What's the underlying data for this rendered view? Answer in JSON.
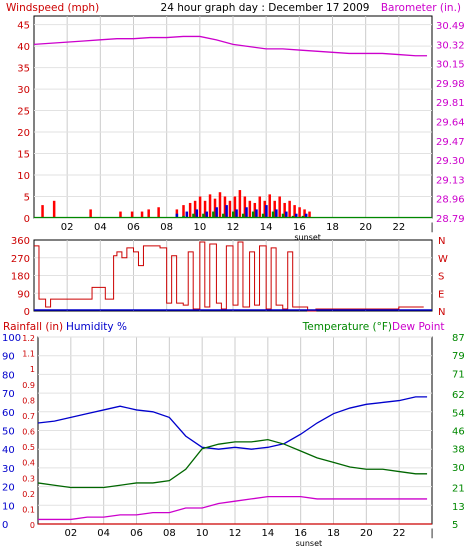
{
  "chart_data": [
    {
      "type": "bar",
      "panel": "wind-barometer",
      "title": "24 hour graph day : December 17 2009",
      "left_axis_label": "Windspeed (mph)",
      "right_axis_label": "Barometer (in.)",
      "left_ticks": [
        "0",
        "5",
        "10",
        "15",
        "20",
        "25",
        "30",
        "35",
        "40",
        "45"
      ],
      "right_ticks": [
        "28.79",
        "28.96",
        "29.13",
        "29.30",
        "29.47",
        "29.64",
        "29.81",
        "29.98",
        "30.15",
        "30.32",
        "30.49"
      ],
      "ylim_left": [
        0,
        47
      ],
      "ylim_right": [
        28.79,
        30.57
      ],
      "xlim": [
        0,
        24
      ],
      "x_ticks": [
        "02",
        "04",
        "06",
        "08",
        "10",
        "12",
        "14",
        "16",
        "18",
        "20",
        "22"
      ],
      "sunset_label": "sunset",
      "sunset_hour": 16.5,
      "grid": true,
      "series": [
        {
          "role": "barometer",
          "color": "#cc00cc",
          "x": [
            0,
            1,
            2,
            3,
            4,
            5,
            6,
            7,
            8,
            9,
            10,
            11,
            12,
            13,
            14,
            15,
            16,
            17,
            18,
            19,
            20,
            21,
            22,
            23,
            23.7
          ],
          "y": [
            30.32,
            30.33,
            30.34,
            30.35,
            30.36,
            30.37,
            30.37,
            30.38,
            30.38,
            30.39,
            30.39,
            30.36,
            30.32,
            30.3,
            30.28,
            30.28,
            30.27,
            30.26,
            30.25,
            30.24,
            30.24,
            30.24,
            30.23,
            30.22,
            30.22
          ]
        },
        {
          "role": "gust",
          "color": "#ff0000",
          "x": [
            0.5,
            1.2,
            3.4,
            5.2,
            5.9,
            6.5,
            6.9,
            7.5,
            8.6,
            9.0,
            9.4,
            9.7,
            10.0,
            10.3,
            10.6,
            10.9,
            11.2,
            11.5,
            11.8,
            12.1,
            12.4,
            12.7,
            13.0,
            13.3,
            13.6,
            13.9,
            14.2,
            14.5,
            14.8,
            15.1,
            15.4,
            15.7,
            16.0,
            16.3,
            16.6
          ],
          "y": [
            3,
            4,
            2,
            1.5,
            1.5,
            1.5,
            2,
            2.5,
            2,
            3,
            3.5,
            4,
            5,
            4,
            5.5,
            4.5,
            6,
            5,
            4,
            5,
            6.5,
            5,
            4,
            3.5,
            5,
            4,
            5.5,
            4,
            5,
            3.5,
            4,
            3,
            2.5,
            2,
            1.5
          ]
        },
        {
          "role": "average",
          "color": "#0000cc",
          "x": [
            8.6,
            9.2,
            9.8,
            10.4,
            11.0,
            11.6,
            12.2,
            12.8,
            13.4,
            14.0,
            14.6,
            15.2,
            15.8,
            16.4
          ],
          "y": [
            1,
            1.5,
            2,
            1.5,
            2.5,
            3,
            2,
            2.5,
            2,
            3,
            2,
            1.5,
            1,
            1
          ]
        },
        {
          "role": "wind",
          "color": "#008800",
          "x": [
            9.0,
            9.6,
            10.2,
            10.8,
            11.4,
            12.0,
            12.6,
            13.2,
            13.8,
            14.4,
            15.0,
            15.6,
            16.2
          ],
          "y": [
            0.5,
            1,
            1,
            1.5,
            1,
            1.5,
            1,
            1.5,
            1,
            1.5,
            1,
            0.5,
            0.5
          ]
        }
      ]
    },
    {
      "type": "scatter",
      "panel": "wind-direction",
      "left_ticks": [
        "0",
        "90",
        "180",
        "270",
        "360"
      ],
      "right_ticks": [
        "N",
        "W",
        "S",
        "E",
        "N"
      ],
      "ylim": [
        0,
        360
      ],
      "xlim": [
        0,
        24
      ],
      "grid": true,
      "series": [
        {
          "role": "direction",
          "color": "#cc0000",
          "x": [
            0,
            0.3,
            0.7,
            1.0,
            1.5,
            2.5,
            3.0,
            3.5,
            4.0,
            4.3,
            4.5,
            4.8,
            5.0,
            5.3,
            5.6,
            6.0,
            6.3,
            6.6,
            7.0,
            7.3,
            7.6,
            8.0,
            8.3,
            8.6,
            9.0,
            9.3,
            9.6,
            10.0,
            10.3,
            10.6,
            11.0,
            11.3,
            11.6,
            12.0,
            12.3,
            12.6,
            13.0,
            13.3,
            13.6,
            14.0,
            14.3,
            14.6,
            15.0,
            15.3,
            15.6,
            16.0,
            16.5,
            17.0,
            17.3,
            20.0,
            22.0,
            23.5
          ],
          "y": [
            330,
            60,
            20,
            60,
            60,
            60,
            60,
            120,
            120,
            60,
            60,
            280,
            300,
            270,
            320,
            300,
            230,
            330,
            330,
            330,
            320,
            40,
            280,
            40,
            30,
            300,
            10,
            350,
            20,
            340,
            40,
            10,
            330,
            30,
            350,
            20,
            300,
            30,
            330,
            10,
            320,
            30,
            10,
            300,
            20,
            20,
            0,
            10,
            10,
            10,
            20,
            20
          ]
        }
      ]
    },
    {
      "type": "line",
      "panel": "rain-humidity-temperature",
      "rain_axis_label": "Rainfall (in)",
      "humidity_axis_label": "Humidity %",
      "temp_axis_label": "Temperature (°F)",
      "dewpoint_axis_label": "Dew Point",
      "humidity_ticks": [
        "0",
        "10",
        "20",
        "30",
        "40",
        "50",
        "60",
        "70",
        "80",
        "90",
        "100"
      ],
      "rain_ticks": [
        "0",
        "0.1",
        "0.2",
        "0.3",
        "0.4",
        "0.5",
        "0.6",
        "0.7",
        "0.8",
        "0.9",
        "1",
        "1.1",
        "1.2"
      ],
      "temp_ticks": [
        "5",
        "13",
        "21",
        "30",
        "38",
        "46",
        "54",
        "62",
        "71",
        "79",
        "87"
      ],
      "ylim_humidity": [
        0,
        100
      ],
      "ylim_rain": [
        0,
        1.2
      ],
      "ylim_temp": [
        5,
        87
      ],
      "xlim": [
        0,
        24
      ],
      "x_ticks": [
        "02",
        "04",
        "06",
        "08",
        "10",
        "12",
        "14",
        "16",
        "18",
        "20",
        "22"
      ],
      "sunset_label": "sunset",
      "grid": true,
      "series": [
        {
          "role": "humidity",
          "color": "#0000cc",
          "axis": "humidity",
          "x": [
            0,
            1,
            2,
            3,
            4,
            5,
            6,
            7,
            8,
            9,
            10,
            11,
            12,
            13,
            14,
            15,
            16,
            17,
            18,
            19,
            20,
            21,
            22,
            23,
            23.7
          ],
          "y": [
            54,
            55,
            57,
            59,
            61,
            63,
            61,
            60,
            57,
            47,
            41,
            40,
            41,
            40,
            41,
            43,
            48,
            54,
            59,
            62,
            64,
            65,
            66,
            68,
            68
          ]
        },
        {
          "role": "temperature",
          "color": "#006600",
          "axis": "temp",
          "x": [
            0,
            1,
            2,
            3,
            4,
            5,
            6,
            7,
            8,
            9,
            10,
            11,
            12,
            13,
            14,
            15,
            16,
            17,
            18,
            19,
            20,
            21,
            22,
            23,
            23.7
          ],
          "y": [
            23,
            22,
            21,
            21,
            21,
            22,
            23,
            23,
            24,
            29,
            38,
            40,
            41,
            41,
            42,
            40,
            37,
            34,
            32,
            30,
            29,
            29,
            28,
            27,
            27
          ]
        },
        {
          "role": "dew-point",
          "color": "#cc00cc",
          "axis": "temp",
          "x": [
            0,
            1,
            2,
            3,
            4,
            5,
            6,
            7,
            8,
            9,
            10,
            11,
            12,
            13,
            14,
            15,
            16,
            17,
            18,
            19,
            20,
            21,
            22,
            23,
            23.7
          ],
          "y": [
            7,
            7,
            7,
            8,
            8,
            9,
            9,
            10,
            10,
            12,
            12,
            14,
            15,
            16,
            17,
            17,
            17,
            16,
            16,
            16,
            16,
            16,
            16,
            16,
            16
          ]
        },
        {
          "role": "rainfall",
          "color": "#cc0000",
          "axis": "rain",
          "x": [
            0,
            24
          ],
          "y": [
            0,
            0
          ]
        }
      ]
    }
  ]
}
